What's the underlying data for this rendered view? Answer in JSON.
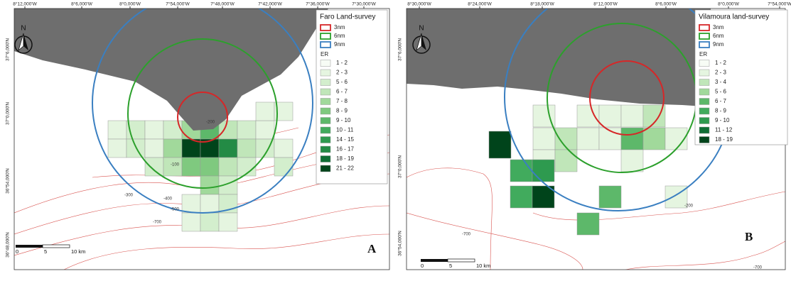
{
  "panels": [
    {
      "label": "A",
      "legend_title": "Faro Land-survey",
      "rings": [
        "3nm",
        "6nm",
        "9nm"
      ],
      "er_title": "ER",
      "er_classes": [
        "1 - 2",
        "2 - 3",
        "5 - 6",
        "6 - 7",
        "7 - 8",
        "8 - 9",
        "9 - 10",
        "10 - 11",
        "14 - 15",
        "16 - 17",
        "18 - 19",
        "21 - 22"
      ],
      "lon_labels": [
        "8°12,000'W",
        "8°6,000'W",
        "8°0,000'W",
        "7°54,000'W",
        "7°48,000'W",
        "7°42,000'W",
        "7°36,000'W",
        "7°30,000'W"
      ],
      "lat_labels": [
        "37°6,000'N",
        "37°0,000'N",
        "36°54,000'N",
        "36°48,000'N"
      ],
      "depth_labels": [
        "-100",
        "-200",
        "-300",
        "-400",
        "-500",
        "-700"
      ],
      "north": "N",
      "scale": [
        "0",
        "5",
        "10 km"
      ]
    },
    {
      "label": "B",
      "legend_title": "Vilamoura land-survey",
      "rings": [
        "3nm",
        "6nm",
        "9nm"
      ],
      "er_title": "ER",
      "er_classes": [
        "1 - 2",
        "2 - 3",
        "3 - 4",
        "5 - 6",
        "6 - 7",
        "8 - 9",
        "9 - 10",
        "11 - 12",
        "18 - 19"
      ],
      "lon_labels": [
        "8°30,000'W",
        "8°24,000'W",
        "8°18,000'W",
        "8°12,000'W",
        "8°6,000'W",
        "8°0,000'W",
        "7°54,000'W"
      ],
      "lat_labels": [
        "37°6,000'N",
        "37°0,000'N",
        "36°54,000'N"
      ],
      "depth_labels": [
        "-200",
        "-700",
        "-700"
      ],
      "north": "N",
      "scale": [
        "0",
        "5",
        "10 km"
      ]
    }
  ]
}
